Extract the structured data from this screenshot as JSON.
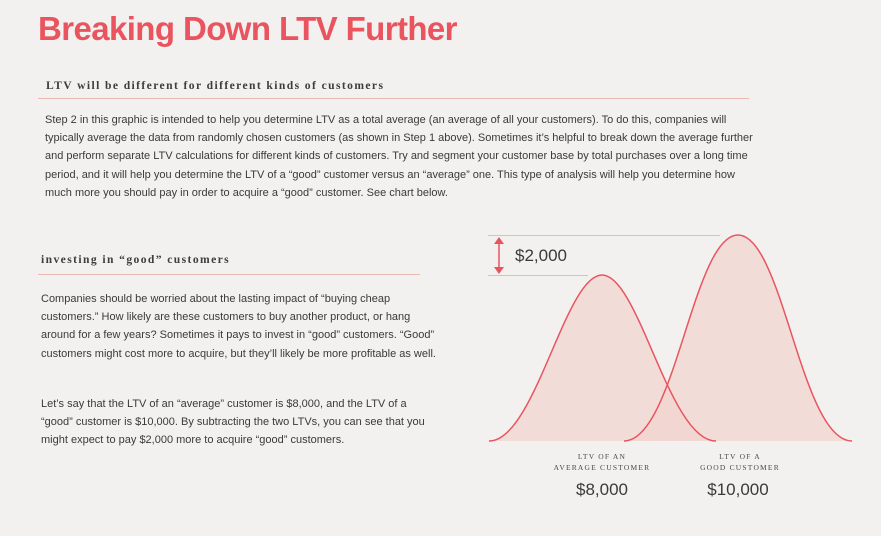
{
  "title": "Breaking Down LTV Further",
  "section1": {
    "heading": "LTV will be different for different kinds of customers",
    "body": "Step 2 in this graphic is intended to help you determine LTV as a total average (an average of all your customers). To do this, companies will typically average the data from randomly chosen customers (as shown in Step 1 above). Sometimes it’s helpful to break down the average further and perform separate LTV calculations for different kinds of customers. Try and segment your customer base by total purchases over a long time period, and it will help you determine the LTV of a “good” customer versus an “average” one. This type of analysis will help you determine how much more you should pay in order to acquire a “good” customer. See chart below."
  },
  "section2": {
    "heading": "investing in “good” customers",
    "body1": "Companies should be worried about the lasting impact of “buying cheap customers.” How likely are these customers to buy another product, or hang around for a few years? Sometimes it pays to invest in “good” customers. “Good” customers might cost more to acquire, but they’ll likely be more profitable as well.",
    "body2": "Let’s say that the LTV of an “average” customer is $8,000, and the LTV of a “good” customer is $10,000. By subtracting the two LTVs, you can see that you might expect to pay $2,000 more to acquire “good” customers."
  },
  "chart": {
    "difference_label": "$2,000",
    "curve_color": "#e9545f",
    "fill_color": "#f2d4d0",
    "average": {
      "caption_line1": "LTV of an",
      "caption_line2": "average customer",
      "value_label": "$8,000",
      "value": 8000
    },
    "good": {
      "caption_line1": "LTV of a",
      "caption_line2": "good customer",
      "value_label": "$10,000",
      "value": 10000
    }
  }
}
